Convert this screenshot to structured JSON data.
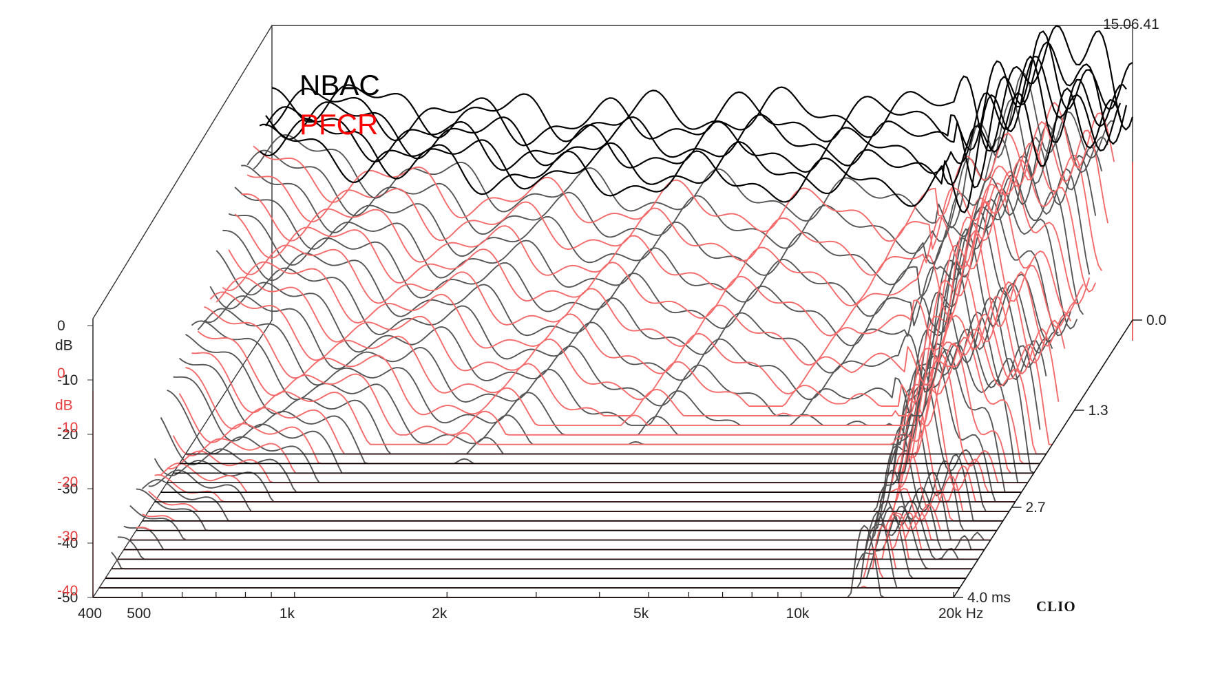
{
  "timestamp": "15.06.41",
  "brand": "CLIO",
  "chart_data": {
    "type": "waterfall",
    "legend": [
      {
        "name": "NBAC",
        "color": "#000000"
      },
      {
        "name": "PFCR",
        "color": "#ff0000"
      }
    ],
    "series_colors": {
      "NBAC": "#555555",
      "PFCR": "#f46a6a"
    },
    "x_axis": {
      "scale": "log",
      "range_hz": [
        400,
        20000
      ],
      "tick_labels": [
        {
          "hz": 400,
          "label": "400"
        },
        {
          "hz": 500,
          "label": "500"
        },
        {
          "hz": 1000,
          "label": "1k"
        },
        {
          "hz": 2000,
          "label": "2k"
        },
        {
          "hz": 5000,
          "label": "5k"
        },
        {
          "hz": 10000,
          "label": "10k"
        },
        {
          "hz": 20000,
          "label": "20k Hz"
        }
      ],
      "minor_ticks_hz": [
        600,
        700,
        800,
        900,
        3000,
        4000,
        6000,
        7000,
        8000,
        9000
      ]
    },
    "y_axis_black": {
      "unit_label": "dB",
      "ticks": [
        {
          "v": 0,
          "label": "0"
        },
        {
          "v": -10,
          "label": "-10"
        },
        {
          "v": -20,
          "label": "-20"
        },
        {
          "v": -30,
          "label": "-30"
        },
        {
          "v": -40,
          "label": "-40"
        },
        {
          "v": -50,
          "label": "-50"
        }
      ]
    },
    "y_axis_red": {
      "unit_label": "dB",
      "ticks": [
        {
          "v": 0,
          "label": "0"
        },
        {
          "v": -10,
          "label": "-10"
        },
        {
          "v": -20,
          "label": "-20"
        },
        {
          "v": -30,
          "label": "-30"
        },
        {
          "v": -40,
          "label": "-40"
        }
      ]
    },
    "time_axis": {
      "unit": "ms",
      "range_ms": [
        0,
        4.0
      ],
      "tick_labels": [
        {
          "ms": 0.0,
          "label": "0.0"
        },
        {
          "ms": 1.3,
          "label": "1.3"
        },
        {
          "ms": 2.7,
          "label": "2.7"
        },
        {
          "ms": 4.0,
          "label": "4.0  ms"
        }
      ]
    },
    "slices": 30,
    "decay_profile": {
      "hz": [
        400,
        500,
        700,
        1000,
        1500,
        2000,
        3000,
        5000,
        7000,
        10000,
        13000,
        16000,
        20000
      ],
      "NBAC_start_db": [
        -8,
        -9,
        -11,
        -12,
        -13,
        -13,
        -12,
        -12,
        -12,
        -11,
        -3,
        -1,
        -6
      ],
      "NBAC_decay_ms": [
        3.4,
        3.0,
        2.6,
        2.2,
        2.0,
        1.9,
        1.7,
        1.6,
        1.5,
        1.6,
        3.8,
        3.0,
        2.2
      ],
      "PFCR_start_db": [
        -10,
        -11,
        -12,
        -13,
        -14,
        -14,
        -13,
        -13,
        -13,
        -12,
        -5,
        -4,
        -8
      ],
      "PFCR_decay_ms": [
        2.9,
        2.6,
        2.3,
        2.0,
        1.8,
        1.7,
        1.5,
        1.4,
        1.3,
        1.6,
        3.2,
        2.4,
        1.8
      ]
    }
  }
}
